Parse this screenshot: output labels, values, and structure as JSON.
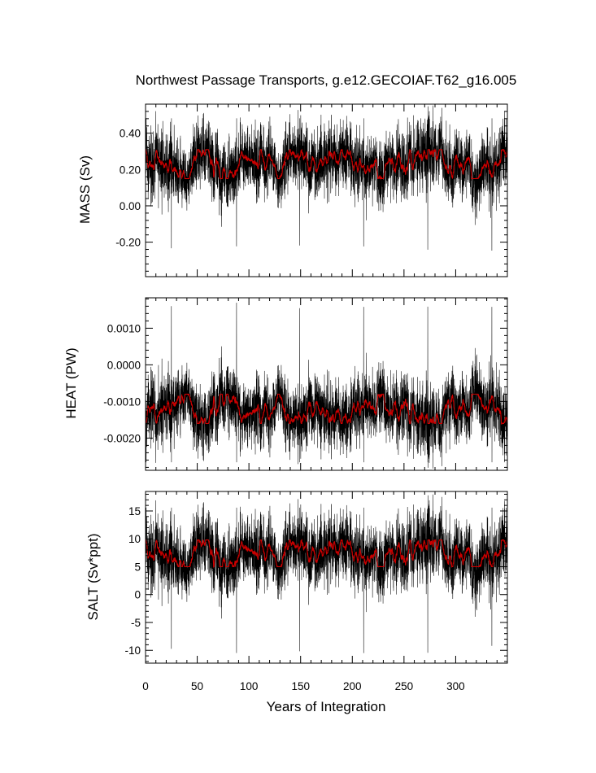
{
  "chart_data": {
    "type": "line",
    "title": "Northwest Passage Transports, g.e12.GECOIAF.T62_g16.005",
    "xlabel": "Years of Integration",
    "xlim": [
      0,
      350
    ],
    "x_ticks": [
      "0",
      "50",
      "100",
      "150",
      "200",
      "250",
      "300"
    ],
    "x_tick_values": [
      0,
      50,
      100,
      150,
      200,
      250,
      300
    ],
    "cycle_length_years": 62,
    "series_colors": {
      "monthly": "#000000",
      "smoothed": "#cc0000"
    },
    "panels": [
      {
        "ylabel": "MASS (Sv)",
        "ylim": [
          -0.39,
          0.56
        ],
        "y_ticks": [
          "-0.20",
          "0.00",
          "0.20",
          "0.40"
        ],
        "y_tick_values": [
          -0.2,
          0.0,
          0.2,
          0.4
        ],
        "monthly_mean": 0.23,
        "monthly_spread": 0.09,
        "smoothed_range": [
          0.15,
          0.31
        ],
        "cycle_start_min": -0.25
      },
      {
        "ylabel": "HEAT (PW)",
        "ylim": [
          -0.00288,
          0.00183
        ],
        "y_ticks": [
          "-0.0020",
          "-0.0010",
          "0.0000",
          "0.0010"
        ],
        "y_tick_values": [
          -0.002,
          -0.001,
          0.0,
          0.001
        ],
        "monthly_mean": -0.00122,
        "monthly_spread": 0.00045,
        "smoothed_range": [
          -0.0016,
          -0.0008
        ],
        "cycle_start_max": 0.0017
      },
      {
        "ylabel": "SALT (Sv*ppt)",
        "ylim": [
          -12.3,
          18.5
        ],
        "y_ticks": [
          "-10",
          "-5",
          "0",
          "5",
          "10",
          "15"
        ],
        "y_tick_values": [
          -10,
          -5,
          0,
          5,
          10,
          15
        ],
        "monthly_mean": 7.2,
        "monthly_spread": 3.0,
        "smoothed_range": [
          5.0,
          9.8
        ],
        "cycle_start_min": -10.5
      }
    ]
  }
}
